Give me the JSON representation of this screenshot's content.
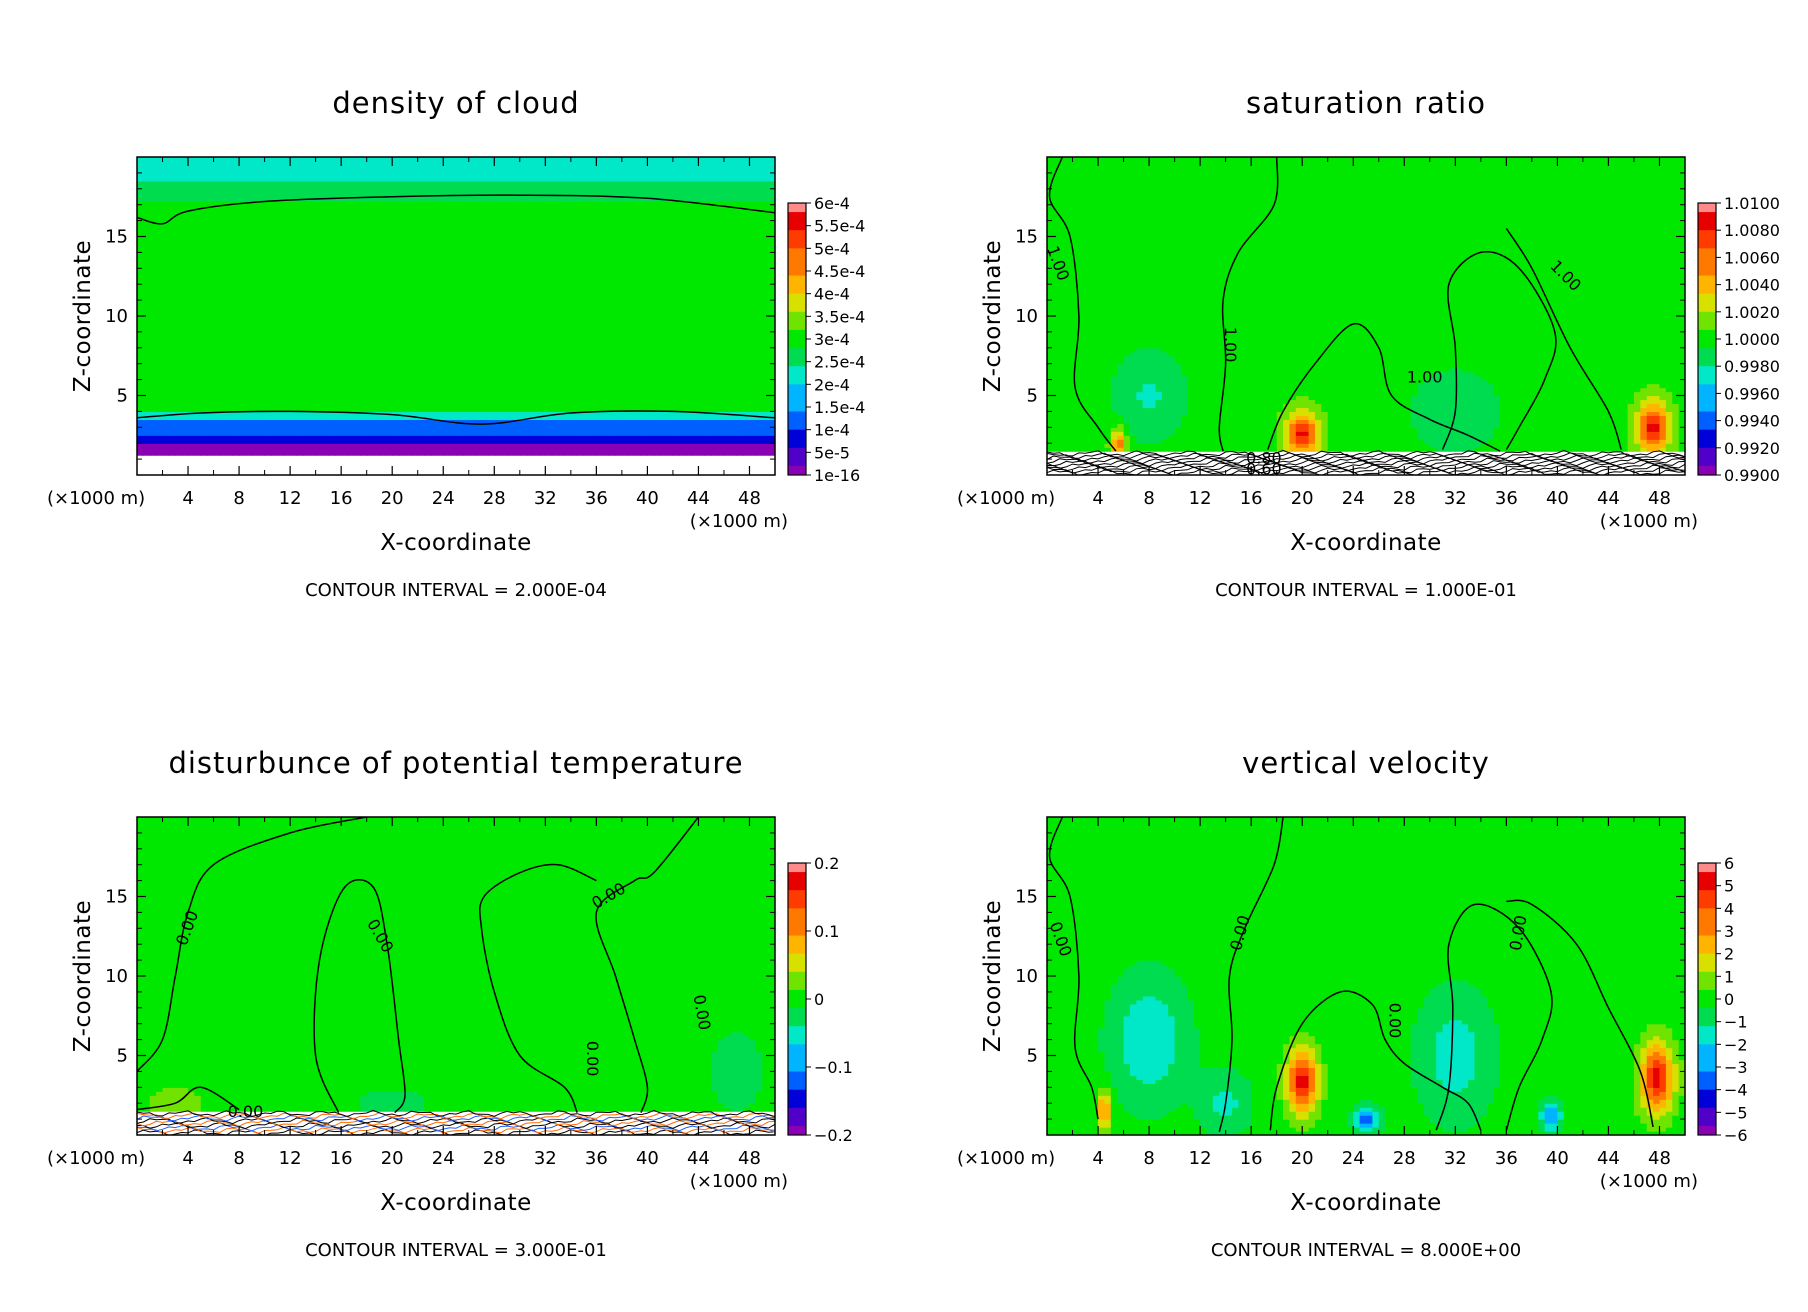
{
  "chart_data": [
    {
      "type": "heatmap",
      "title": "density of cloud",
      "xlabel": "X-coordinate",
      "ylabel": "Z-coordinate",
      "x_unit": "(×1000 m)",
      "y_unit": "(×1000 m)",
      "xlim": [
        0,
        50
      ],
      "ylim": [
        0,
        20
      ],
      "x_ticks": [
        4,
        8,
        12,
        16,
        20,
        24,
        28,
        32,
        36,
        40,
        44,
        48
      ],
      "y_ticks": [
        5,
        10,
        15
      ],
      "colorbar_labels": [
        "6e-4",
        "5.5e-4",
        "5e-4",
        "4.5e-4",
        "4e-4",
        "3.5e-4",
        "3e-4",
        "2.5e-4",
        "2e-4",
        "1.5e-4",
        "1e-4",
        "5e-5",
        "1e-16"
      ],
      "contour_interval": "CONTOUR INTERVAL = 2.000E-04",
      "contour_labels": [],
      "field": "cloud"
    },
    {
      "type": "heatmap",
      "title": "saturation ratio",
      "xlabel": "X-coordinate",
      "ylabel": "Z-coordinate",
      "x_unit": "(×1000 m)",
      "y_unit": "(×1000 m)",
      "xlim": [
        0,
        50
      ],
      "ylim": [
        0,
        20
      ],
      "x_ticks": [
        4,
        8,
        12,
        16,
        20,
        24,
        28,
        32,
        36,
        40,
        44,
        48
      ],
      "y_ticks": [
        5,
        10,
        15
      ],
      "colorbar_labels": [
        "1.0100",
        "1.0080",
        "1.0060",
        "1.0040",
        "1.0020",
        "1.0000",
        "0.9980",
        "0.9960",
        "0.9940",
        "0.9920",
        "0.9900"
      ],
      "contour_interval": "CONTOUR INTERVAL = 1.000E-01",
      "contour_labels": [
        "1.00",
        "1.00",
        "1.00",
        "1.00",
        "0.80",
        "0.60"
      ],
      "field": "sat"
    },
    {
      "type": "heatmap",
      "title": "disturbunce of potential temperature",
      "xlabel": "X-coordinate",
      "ylabel": "Z-coordinate",
      "x_unit": "(×1000 m)",
      "y_unit": "(×1000 m)",
      "xlim": [
        0,
        50
      ],
      "ylim": [
        0,
        20
      ],
      "x_ticks": [
        4,
        8,
        12,
        16,
        20,
        24,
        28,
        32,
        36,
        40,
        44,
        48
      ],
      "y_ticks": [
        5,
        10,
        15
      ],
      "colorbar_labels": [
        "0.2",
        "0.1",
        "0",
        "−0.1",
        "−0.2"
      ],
      "contour_interval": "CONTOUR INTERVAL = 3.000E-01",
      "contour_labels": [
        "0.00",
        "0.00",
        "0.00",
        "0.00",
        "0.00",
        "0.00"
      ],
      "field": "theta"
    },
    {
      "type": "heatmap",
      "title": "vertical velocity",
      "xlabel": "X-coordinate",
      "ylabel": "Z-coordinate",
      "x_unit": "(×1000 m)",
      "y_unit": "(×1000 m)",
      "xlim": [
        0,
        50
      ],
      "ylim": [
        0,
        20
      ],
      "x_ticks": [
        4,
        8,
        12,
        16,
        20,
        24,
        28,
        32,
        36,
        40,
        44,
        48
      ],
      "y_ticks": [
        5,
        10,
        15
      ],
      "colorbar_labels": [
        "6",
        "5",
        "4",
        "3",
        "2",
        "1",
        "0",
        "−1",
        "−2",
        "−3",
        "−4",
        "−5",
        "−6"
      ],
      "contour_interval": "CONTOUR INTERVAL = 8.000E+00",
      "contour_labels": [
        "0.00",
        "0.00",
        "0.00",
        "0.00"
      ],
      "field": "w"
    }
  ],
  "colors": {
    "scale": [
      "#8a00b4",
      "#5000c8",
      "#0000d8",
      "#0060ff",
      "#00b4ff",
      "#00e8c8",
      "#00dc50",
      "#00e800",
      "#70e400",
      "#d8e000",
      "#ffb400",
      "#ff7800",
      "#ff3c00",
      "#e60000",
      "#ff8a8a"
    ]
  }
}
